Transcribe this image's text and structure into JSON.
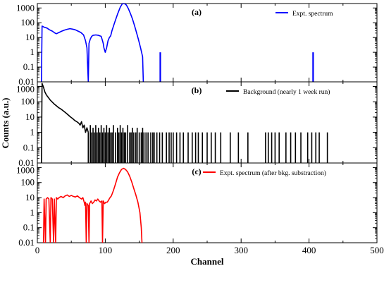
{
  "chart_data": {
    "type": "line",
    "shared_x_axis": {
      "label": "Channel",
      "xlim": [
        0,
        500
      ],
      "ticks": [
        0,
        100,
        200,
        300,
        400,
        500
      ]
    },
    "shared_y_label": "Counts (a.u.)",
    "y_scale": "log",
    "panels": [
      {
        "id": "a",
        "tag": "(a)",
        "ylim": [
          0.01,
          2000
        ],
        "y_ticks": [
          0.01,
          0.1,
          1,
          10,
          100,
          1000
        ],
        "y_tick_labels": [
          "0.01",
          "0.1",
          "1",
          "10",
          "100",
          "1000"
        ],
        "legend": "Expt. spectrum",
        "color": "#0000ff",
        "series": {
          "name": "Expt. spectrum",
          "curve": [
            [
              6,
              0.01
            ],
            [
              7,
              60
            ],
            [
              10,
              50
            ],
            [
              14,
              44
            ],
            [
              18,
              33
            ],
            [
              22,
              27
            ],
            [
              26,
              20
            ],
            [
              28,
              18
            ],
            [
              32,
              22
            ],
            [
              36,
              27
            ],
            [
              40,
              32
            ],
            [
              44,
              36
            ],
            [
              48,
              40
            ],
            [
              52,
              37
            ],
            [
              56,
              33
            ],
            [
              60,
              27
            ],
            [
              64,
              22
            ],
            [
              68,
              15
            ],
            [
              71,
              6
            ],
            [
              73,
              2
            ],
            [
              75,
              0.01
            ],
            [
              76,
              4
            ],
            [
              78,
              8
            ],
            [
              80,
              12
            ],
            [
              82,
              14
            ],
            [
              86,
              15
            ],
            [
              90,
              14
            ],
            [
              94,
              12
            ],
            [
              96,
              6
            ],
            [
              97,
              4
            ],
            [
              98,
              2
            ],
            [
              100,
              1
            ],
            [
              102,
              2
            ],
            [
              104,
              6
            ],
            [
              106,
              10
            ],
            [
              108,
              13
            ],
            [
              110,
              30
            ],
            [
              114,
              110
            ],
            [
              118,
              380
            ],
            [
              122,
              1100
            ],
            [
              125,
              1900
            ],
            [
              128,
              2000
            ],
            [
              131,
              1600
            ],
            [
              134,
              900
            ],
            [
              137,
              420
            ],
            [
              140,
              180
            ],
            [
              143,
              65
            ],
            [
              146,
              22
            ],
            [
              149,
              7
            ],
            [
              152,
              2
            ],
            [
              155,
              0.5
            ],
            [
              156,
              0.01
            ]
          ],
          "spikes": [
            [
              181,
              1
            ],
            [
              406,
              1
            ]
          ]
        }
      },
      {
        "id": "b",
        "tag": "(b)",
        "ylim": [
          0.01,
          2000
        ],
        "y_ticks": [
          0.01,
          0.1,
          1,
          10,
          100,
          1000
        ],
        "y_tick_labels": [
          "0.01",
          "0.1",
          "1",
          "10",
          "100",
          "1000"
        ],
        "legend": "Background (nearly 1 week run)",
        "color": "#000000",
        "series": {
          "name": "Background (nearly 1 week run)",
          "curve": [
            [
              6,
              0.01
            ],
            [
              7,
              1600
            ],
            [
              9,
              900
            ],
            [
              11,
              450
            ],
            [
              13,
              300
            ],
            [
              15,
              220
            ],
            [
              17,
              170
            ],
            [
              19,
              130
            ],
            [
              22,
              95
            ],
            [
              25,
              70
            ],
            [
              28,
              55
            ],
            [
              31,
              42
            ],
            [
              34,
              35
            ],
            [
              37,
              28
            ],
            [
              40,
              22
            ],
            [
              43,
              17
            ],
            [
              46,
              13
            ],
            [
              49,
              10
            ],
            [
              52,
              8
            ],
            [
              55,
              6
            ],
            [
              58,
              5
            ],
            [
              61,
              4
            ],
            [
              63,
              3
            ],
            [
              65,
              5
            ],
            [
              67,
              2
            ],
            [
              69,
              3
            ],
            [
              71,
              1
            ],
            [
              73,
              2
            ],
            [
              75,
              1
            ]
          ],
          "spikes": [
            [
              75,
              1
            ],
            [
              78,
              3
            ],
            [
              80,
              1
            ],
            [
              82,
              2
            ],
            [
              84,
              1
            ],
            [
              86,
              3
            ],
            [
              88,
              1
            ],
            [
              90,
              2
            ],
            [
              92,
              1
            ],
            [
              94,
              3
            ],
            [
              96,
              1
            ],
            [
              98,
              2
            ],
            [
              100,
              1
            ],
            [
              102,
              3
            ],
            [
              104,
              1
            ],
            [
              106,
              2
            ],
            [
              108,
              1
            ],
            [
              110,
              1
            ],
            [
              112,
              3
            ],
            [
              115,
              1
            ],
            [
              118,
              2
            ],
            [
              120,
              1
            ],
            [
              122,
              3
            ],
            [
              124,
              1
            ],
            [
              126,
              2
            ],
            [
              128,
              1
            ],
            [
              130,
              1
            ],
            [
              133,
              3
            ],
            [
              136,
              1
            ],
            [
              138,
              1
            ],
            [
              140,
              2
            ],
            [
              142,
              1
            ],
            [
              145,
              1
            ],
            [
              147,
              2
            ],
            [
              150,
              1
            ],
            [
              153,
              1
            ],
            [
              155,
              2
            ],
            [
              157,
              1
            ],
            [
              160,
              1
            ],
            [
              163,
              1
            ],
            [
              167,
              1
            ],
            [
              170,
              1
            ],
            [
              172,
              1
            ],
            [
              176,
              1
            ],
            [
              180,
              1
            ],
            [
              184,
              1
            ],
            [
              190,
              1
            ],
            [
              194,
              1
            ],
            [
              197,
              1
            ],
            [
              200,
              1
            ],
            [
              205,
              1
            ],
            [
              210,
              1
            ],
            [
              215,
              1
            ],
            [
              222,
              1
            ],
            [
              228,
              1
            ],
            [
              233,
              1
            ],
            [
              237,
              1
            ],
            [
              243,
              1
            ],
            [
              250,
              1
            ],
            [
              256,
              1
            ],
            [
              262,
              1
            ],
            [
              270,
              1
            ],
            [
              284,
              1
            ],
            [
              296,
              1
            ],
            [
              310,
              1
            ],
            [
              336,
              1
            ],
            [
              340,
              1
            ],
            [
              345,
              1
            ],
            [
              350,
              1
            ],
            [
              356,
              1
            ],
            [
              366,
              1
            ],
            [
              373,
              1
            ],
            [
              380,
              1
            ],
            [
              388,
              1
            ],
            [
              398,
              1
            ],
            [
              404,
              1
            ],
            [
              410,
              1
            ],
            [
              415,
              1
            ],
            [
              427,
              1
            ]
          ]
        }
      },
      {
        "id": "c",
        "tag": "(c)",
        "ylim": [
          0.01,
          2000
        ],
        "y_ticks": [
          0.01,
          0.1,
          1,
          10,
          100,
          1000
        ],
        "y_tick_labels": [
          "0.01",
          "0.1",
          "1",
          "10",
          "100",
          "1000"
        ],
        "legend": "Expt. spectrum (after bkg. substraction)",
        "color": "#ff0000",
        "series": {
          "name": "Expt. spectrum (after bkg. substraction)",
          "curve": [
            [
              9,
              0.01
            ],
            [
              10,
              8
            ],
            [
              12,
              0.01
            ],
            [
              13,
              8
            ],
            [
              15,
              10
            ],
            [
              17,
              8
            ],
            [
              19,
              0.01
            ],
            [
              20,
              10
            ],
            [
              22,
              8
            ],
            [
              24,
              0.01
            ],
            [
              25,
              8
            ],
            [
              27,
              0.01
            ],
            [
              28,
              10
            ],
            [
              30,
              8
            ],
            [
              32,
              10
            ],
            [
              35,
              12
            ],
            [
              38,
              10
            ],
            [
              41,
              13
            ],
            [
              44,
              15
            ],
            [
              47,
              12
            ],
            [
              50,
              14
            ],
            [
              53,
              12
            ],
            [
              56,
              11
            ],
            [
              59,
              13
            ],
            [
              62,
              10
            ],
            [
              65,
              8
            ],
            [
              67,
              10
            ],
            [
              69,
              5
            ],
            [
              70,
              3
            ],
            [
              71,
              5
            ],
            [
              72,
              0.01
            ],
            [
              73,
              4
            ],
            [
              75,
              3
            ],
            [
              76,
              0.01
            ],
            [
              77,
              4
            ],
            [
              79,
              6
            ],
            [
              81,
              4
            ],
            [
              83,
              5
            ],
            [
              85,
              7
            ],
            [
              87,
              6
            ],
            [
              89,
              8
            ],
            [
              91,
              6
            ],
            [
              93,
              5
            ],
            [
              95,
              6
            ],
            [
              96,
              0.01
            ],
            [
              97,
              6
            ],
            [
              99,
              4
            ],
            [
              101,
              5
            ],
            [
              103,
              5
            ],
            [
              105,
              7
            ],
            [
              107,
              10
            ],
            [
              109,
              13
            ],
            [
              112,
              30
            ],
            [
              115,
              80
            ],
            [
              118,
              230
            ],
            [
              121,
              450
            ],
            [
              124,
              750
            ],
            [
              127,
              880
            ],
            [
              130,
              740
            ],
            [
              133,
              500
            ],
            [
              136,
              260
            ],
            [
              139,
              110
            ],
            [
              142,
              40
            ],
            [
              145,
              15
            ],
            [
              148,
              5
            ],
            [
              151,
              1
            ],
            [
              153,
              0.1
            ],
            [
              154,
              0.01
            ]
          ],
          "spikes": []
        }
      }
    ]
  }
}
